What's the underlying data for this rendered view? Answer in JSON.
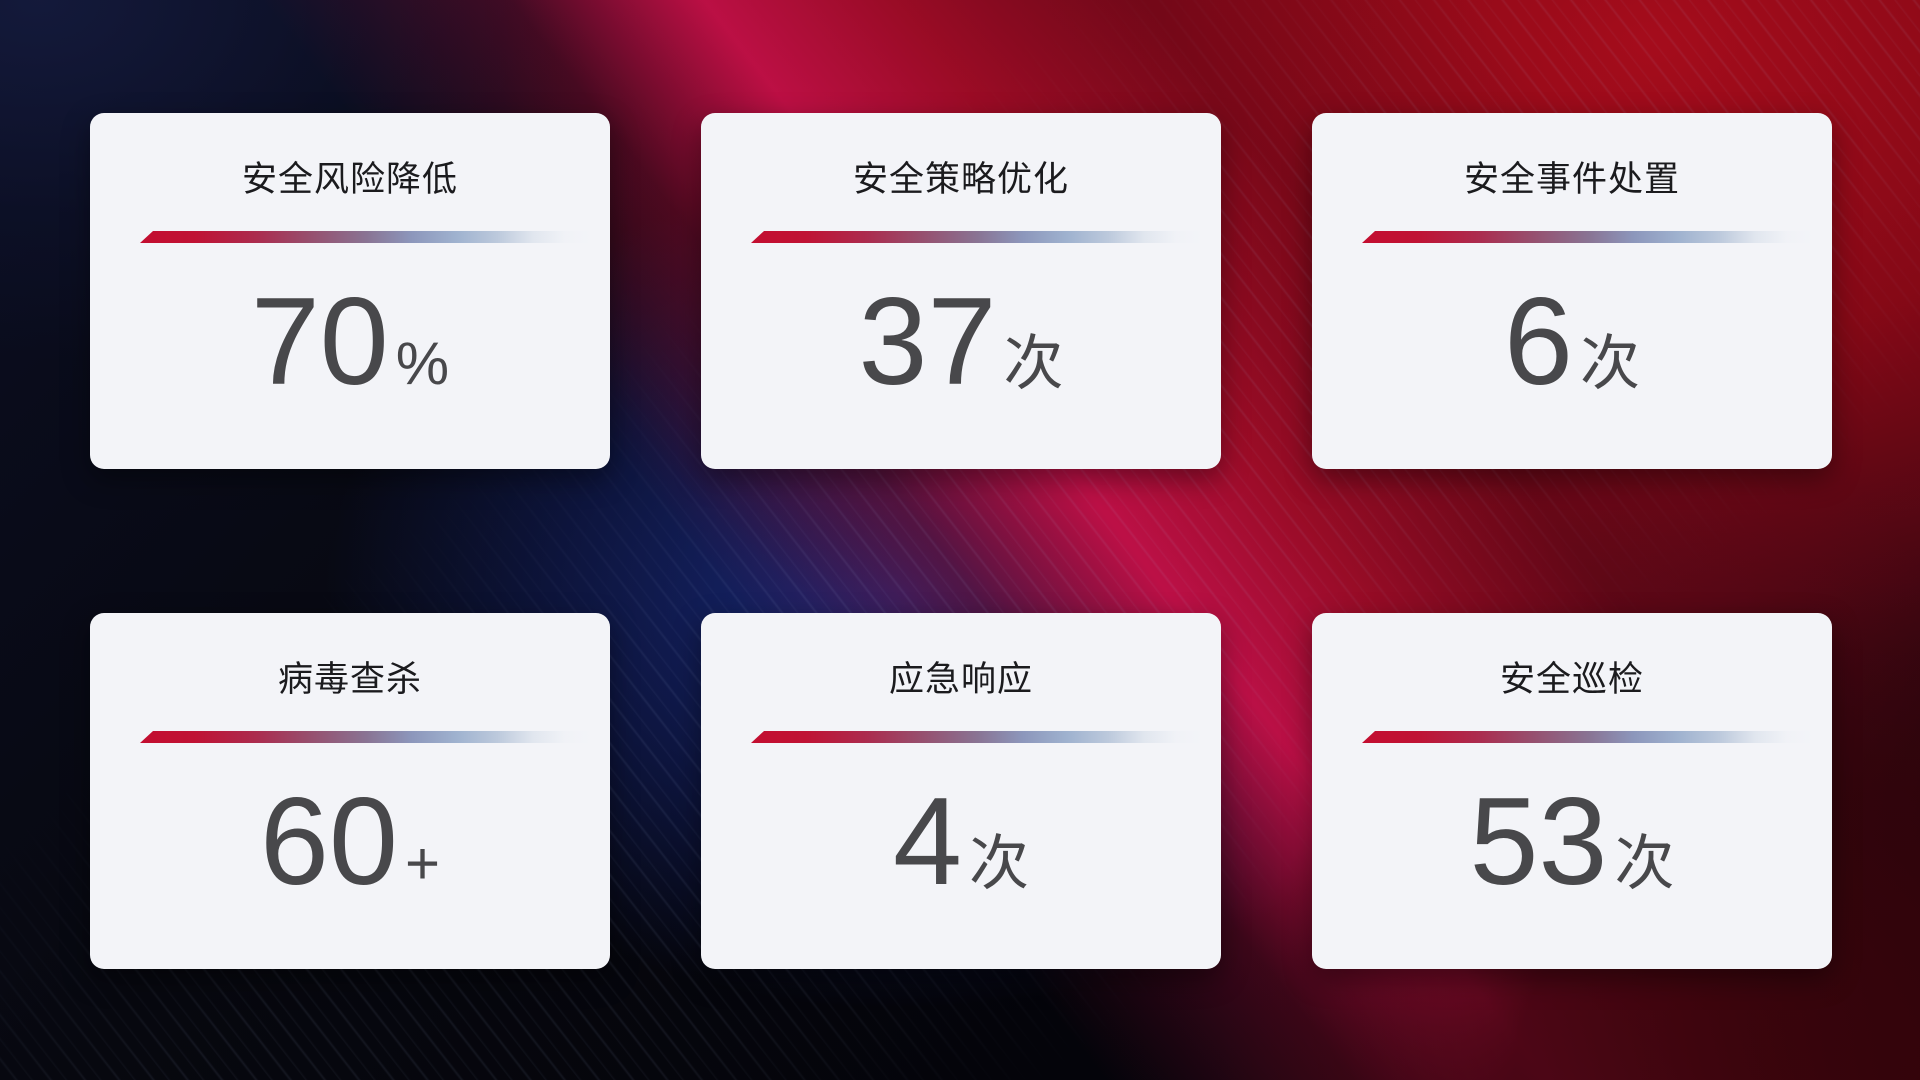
{
  "colors": {
    "accent_red": "#c30d30",
    "divider_blue": "#9fb2cf",
    "card_background": "#f3f4f8",
    "title_text": "#1b1b1e",
    "value_text": "#48484b"
  },
  "cards": [
    {
      "title": "安全风险降低",
      "value": "70",
      "unit": "%"
    },
    {
      "title": "安全策略优化",
      "value": "37",
      "unit": "次"
    },
    {
      "title": "安全事件处置",
      "value": "6",
      "unit": "次"
    },
    {
      "title": "病毒查杀",
      "value": "60",
      "unit": "+"
    },
    {
      "title": "应急响应",
      "value": "4",
      "unit": "次"
    },
    {
      "title": "安全巡检",
      "value": "53",
      "unit": "次"
    }
  ]
}
